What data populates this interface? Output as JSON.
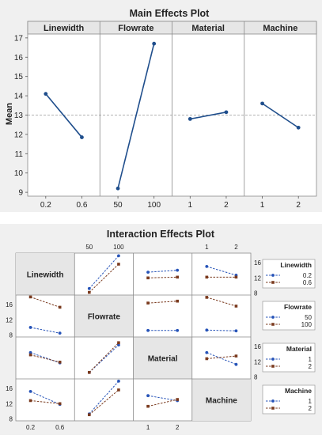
{
  "colors": {
    "background_panel": "#f0f0f0",
    "plot_bg": "#ffffff",
    "header_bg": "#e6e6e6",
    "diag_bg": "#e6e6e6",
    "main_line": "#1f4e8c",
    "series1": "#2653b8",
    "series2": "#7a3a1e",
    "refline": "#9a9a9a",
    "axis_text": "#222222"
  },
  "main_effects": {
    "title": "Main Effects Plot",
    "ylabel": "Mean",
    "overall_mean": 13.0
  },
  "interaction": {
    "title": "Interaction Effects Plot"
  },
  "chart_data": [
    {
      "type": "line",
      "title": "Main Effects Plot",
      "ylabel": "Mean",
      "ylim": [
        8.8,
        17.2
      ],
      "yticks": [
        9,
        10,
        11,
        12,
        13,
        14,
        15,
        16,
        17
      ],
      "reference_line": 13.0,
      "grid": false,
      "panels": [
        {
          "factor": "Linewidth",
          "x": [
            "0.2",
            "0.6"
          ],
          "values": [
            14.1,
            11.85
          ]
        },
        {
          "factor": "Flowrate",
          "x": [
            "50",
            "100"
          ],
          "values": [
            9.2,
            16.7
          ]
        },
        {
          "factor": "Material",
          "x": [
            "1",
            "2"
          ],
          "values": [
            12.8,
            13.15
          ]
        },
        {
          "factor": "Machine",
          "x": [
            "1",
            "2"
          ],
          "values": [
            13.6,
            12.35
          ]
        }
      ]
    },
    {
      "type": "line",
      "title": "Interaction Effects Plot",
      "ylim": [
        7.5,
        18.5
      ],
      "factors": [
        {
          "name": "Linewidth",
          "levels": [
            "0.2",
            "0.6"
          ]
        },
        {
          "name": "Flowrate",
          "levels": [
            "50",
            "100"
          ]
        },
        {
          "name": "Material",
          "levels": [
            "1",
            "2"
          ]
        },
        {
          "name": "Machine",
          "levels": [
            "1",
            "2"
          ]
        }
      ],
      "left_ticks": [
        8,
        12,
        16
      ],
      "right_ticks": [
        8,
        12,
        16
      ],
      "top_tick_labels": {
        "1": [
          "50",
          "100"
        ],
        "3": [
          "1",
          "2"
        ]
      },
      "bottom_tick_labels": {
        "0": [
          "0.2",
          "0.6"
        ],
        "2": [
          "1",
          "2"
        ]
      },
      "left_tick_rows": [
        1,
        3
      ],
      "right_tick_rows": [
        0,
        2
      ],
      "cells": [
        {
          "row": 0,
          "col": 1,
          "series": [
            [
              9.2,
              17.8
            ],
            [
              8.2,
              15.6
            ]
          ]
        },
        {
          "row": 0,
          "col": 2,
          "series": [
            [
              13.5,
              14.0
            ],
            [
              12.0,
              12.2
            ]
          ]
        },
        {
          "row": 0,
          "col": 3,
          "series": [
            [
              15.0,
              12.7
            ],
            [
              12.2,
              12.2
            ]
          ]
        },
        {
          "row": 1,
          "col": 0,
          "series": [
            [
              10.0,
              8.5
            ],
            [
              18.0,
              15.3
            ]
          ]
        },
        {
          "row": 1,
          "col": 2,
          "series": [
            [
              9.2,
              9.2
            ],
            [
              16.4,
              16.9
            ]
          ]
        },
        {
          "row": 1,
          "col": 3,
          "series": [
            [
              9.3,
              9.1
            ],
            [
              17.9,
              15.6
            ]
          ]
        },
        {
          "row": 2,
          "col": 0,
          "series": [
            [
              14.4,
              11.7
            ],
            [
              13.8,
              11.9
            ]
          ]
        },
        {
          "row": 2,
          "col": 1,
          "series": [
            [
              9.2,
              16.4
            ],
            [
              9.2,
              17.0
            ]
          ]
        },
        {
          "row": 2,
          "col": 3,
          "series": [
            [
              14.4,
              11.3
            ],
            [
              12.8,
              13.5
            ]
          ]
        },
        {
          "row": 3,
          "col": 0,
          "series": [
            [
              15.2,
              11.8
            ],
            [
              12.8,
              12.0
            ]
          ]
        },
        {
          "row": 3,
          "col": 1,
          "series": [
            [
              9.3,
              17.9
            ],
            [
              9.1,
              15.6
            ]
          ]
        },
        {
          "row": 3,
          "col": 2,
          "series": [
            [
              14.1,
              12.8
            ],
            [
              11.3,
              13.1
            ]
          ]
        }
      ],
      "legends": [
        {
          "title": "Linewidth",
          "entries": [
            "0.2",
            "0.6"
          ]
        },
        {
          "title": "Flowrate",
          "entries": [
            "50",
            "100"
          ]
        },
        {
          "title": "Material",
          "entries": [
            "1",
            "2"
          ]
        },
        {
          "title": "Machine",
          "entries": [
            "1",
            "2"
          ]
        }
      ]
    }
  ]
}
